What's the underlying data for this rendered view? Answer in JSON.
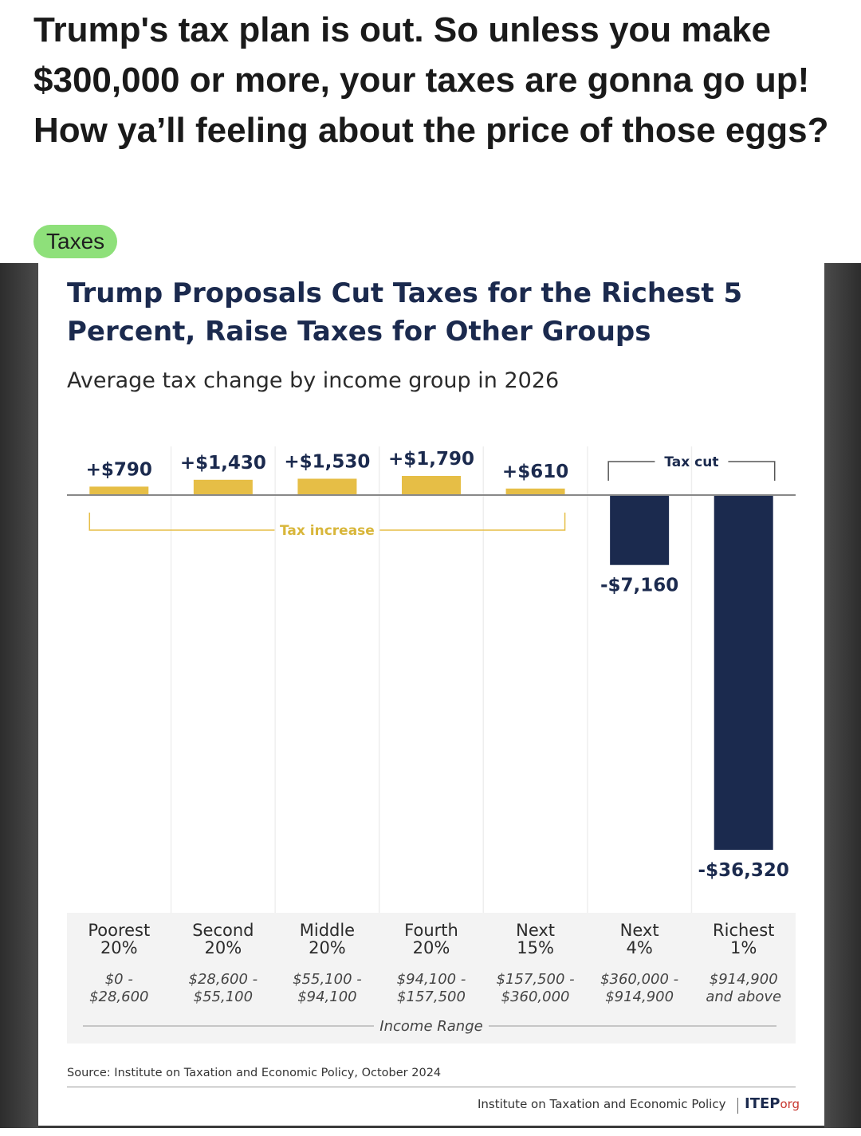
{
  "post": {
    "text": "Trump's tax plan is out. So unless you make $300,000 or more, your taxes are gonna go up! How ya’ll feeling about the price of those eggs?",
    "tag": "Taxes"
  },
  "chart_data": {
    "type": "bar",
    "title": "Trump Proposals Cut Taxes for the Richest 5 Percent, Raise Taxes for Other Groups",
    "subtitle": "Average tax change by income group in 2026",
    "categories": [
      "Poorest 20%",
      "Second 20%",
      "Middle 20%",
      "Fourth 20%",
      "Next 15%",
      "Next 4%",
      "Richest 1%"
    ],
    "category_names": [
      [
        "Poorest",
        "20%"
      ],
      [
        "Second",
        "20%"
      ],
      [
        "Middle",
        "20%"
      ],
      [
        "Fourth",
        "20%"
      ],
      [
        "Next",
        "15%"
      ],
      [
        "Next",
        "4%"
      ],
      [
        "Richest",
        "1%"
      ]
    ],
    "income_ranges": [
      [
        "$0 -",
        "$28,600"
      ],
      [
        "$28,600 -",
        "$55,100"
      ],
      [
        "$55,100 -",
        "$94,100"
      ],
      [
        "$94,100 -",
        "$157,500"
      ],
      [
        "$157,500 -",
        "$360,000"
      ],
      [
        "$360,000 -",
        "$914,900"
      ],
      [
        "$914,900",
        "and above"
      ]
    ],
    "values": [
      790,
      1430,
      1530,
      1790,
      610,
      -7160,
      -36320
    ],
    "value_labels": [
      "+$790",
      "+$1,430",
      "+$1,530",
      "+$1,790",
      "+$610",
      "-$7,160",
      "-$36,320"
    ],
    "bracket_increase_label": "Tax increase",
    "bracket_cut_label": "Tax cut",
    "xlabel": "Income Range",
    "ylabel": "",
    "colors": {
      "increase": "#e6be46",
      "cut": "#1b2a4e"
    },
    "source": "Source: Institute on Taxation and Economic Policy, October 2024",
    "footer_org": "Institute on Taxation and Economic Policy",
    "footer_logo_main": "ITEP",
    "footer_logo_suffix": "org"
  }
}
